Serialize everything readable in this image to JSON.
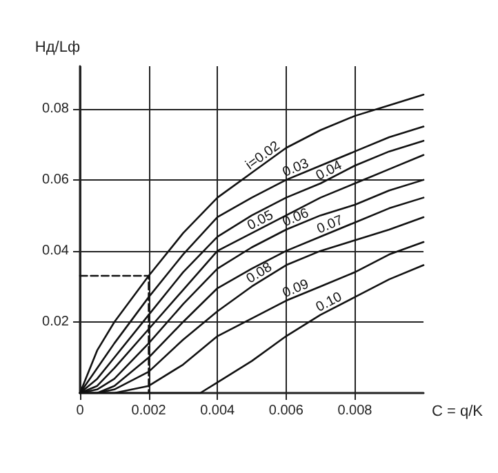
{
  "chart_data": {
    "type": "line",
    "ylabel": "Hд/Lф",
    "xlabel": "C = q/K",
    "x": [
      0,
      0.0005,
      0.001,
      0.002,
      0.003,
      0.004,
      0.005,
      0.006,
      0.007,
      0.008,
      0.009,
      0.01
    ],
    "series": [
      {
        "name": "i=0.02",
        "color": "#111111",
        "values": [
          0,
          0.012,
          0.02,
          0.033,
          0.045,
          0.055,
          0.062,
          0.069,
          0.074,
          0.078,
          0.081,
          0.084
        ]
      },
      {
        "name": "0.03",
        "color": "#111111",
        "values": [
          0,
          0.007,
          0.014,
          0.027,
          0.039,
          0.0495,
          0.055,
          0.06,
          0.064,
          0.068,
          0.072,
          0.075
        ]
      },
      {
        "name": "0.04",
        "color": "#111111",
        "values": [
          0,
          0.004,
          0.01,
          0.022,
          0.034,
          0.044,
          0.05,
          0.055,
          0.059,
          0.064,
          0.068,
          0.071
        ]
      },
      {
        "name": "0.05",
        "color": "#111111",
        "values": [
          0,
          0.002,
          0.007,
          0.018,
          0.029,
          0.04,
          0.045,
          0.05,
          0.055,
          0.059,
          0.063,
          0.067
        ]
      },
      {
        "name": "0.06",
        "color": "#111111",
        "values": [
          0,
          0.001,
          0.004,
          0.014,
          0.025,
          0.035,
          0.041,
          0.046,
          0.05,
          0.053,
          0.057,
          0.06
        ]
      },
      {
        "name": "0.07",
        "color": "#111111",
        "values": [
          0,
          0,
          0.002,
          0.01,
          0.02,
          0.0295,
          0.035,
          0.04,
          0.044,
          0.048,
          0.052,
          0.055
        ]
      },
      {
        "name": "0.08",
        "color": "#111111",
        "values": [
          0,
          0,
          0.001,
          0.006,
          0.015,
          0.023,
          0.03,
          0.036,
          0.04,
          0.043,
          0.046,
          0.0495
        ]
      },
      {
        "name": "0.09",
        "color": "#111111",
        "values": [
          0,
          0,
          0,
          0.002,
          0.008,
          0.016,
          0.021,
          0.026,
          0.03,
          0.034,
          0.039,
          0.0425
        ]
      },
      {
        "name": "0.10",
        "color": "#111111",
        "x": [
          0,
          0.0035,
          0.004,
          0.005,
          0.006,
          0.007,
          0.008,
          0.009,
          0.01
        ],
        "values": [
          0,
          0,
          0.003,
          0.009,
          0.016,
          0.022,
          0.027,
          0.032,
          0.036
        ]
      },
      {
        "color": "#111111",
        "line_style": "dashed",
        "x": [
          0,
          0.002,
          0.002
        ],
        "values": [
          0.033,
          0.033,
          0
        ]
      }
    ],
    "xlim": [
      0,
      0.01
    ],
    "ylim": [
      0,
      0.092
    ],
    "xticks": [
      0,
      0.002,
      0.004,
      0.006,
      0.008
    ],
    "yticks": [
      0.02,
      0.04,
      0.06,
      0.08
    ],
    "grid": true,
    "legend": false,
    "marker": "none",
    "line_style": "solid"
  }
}
